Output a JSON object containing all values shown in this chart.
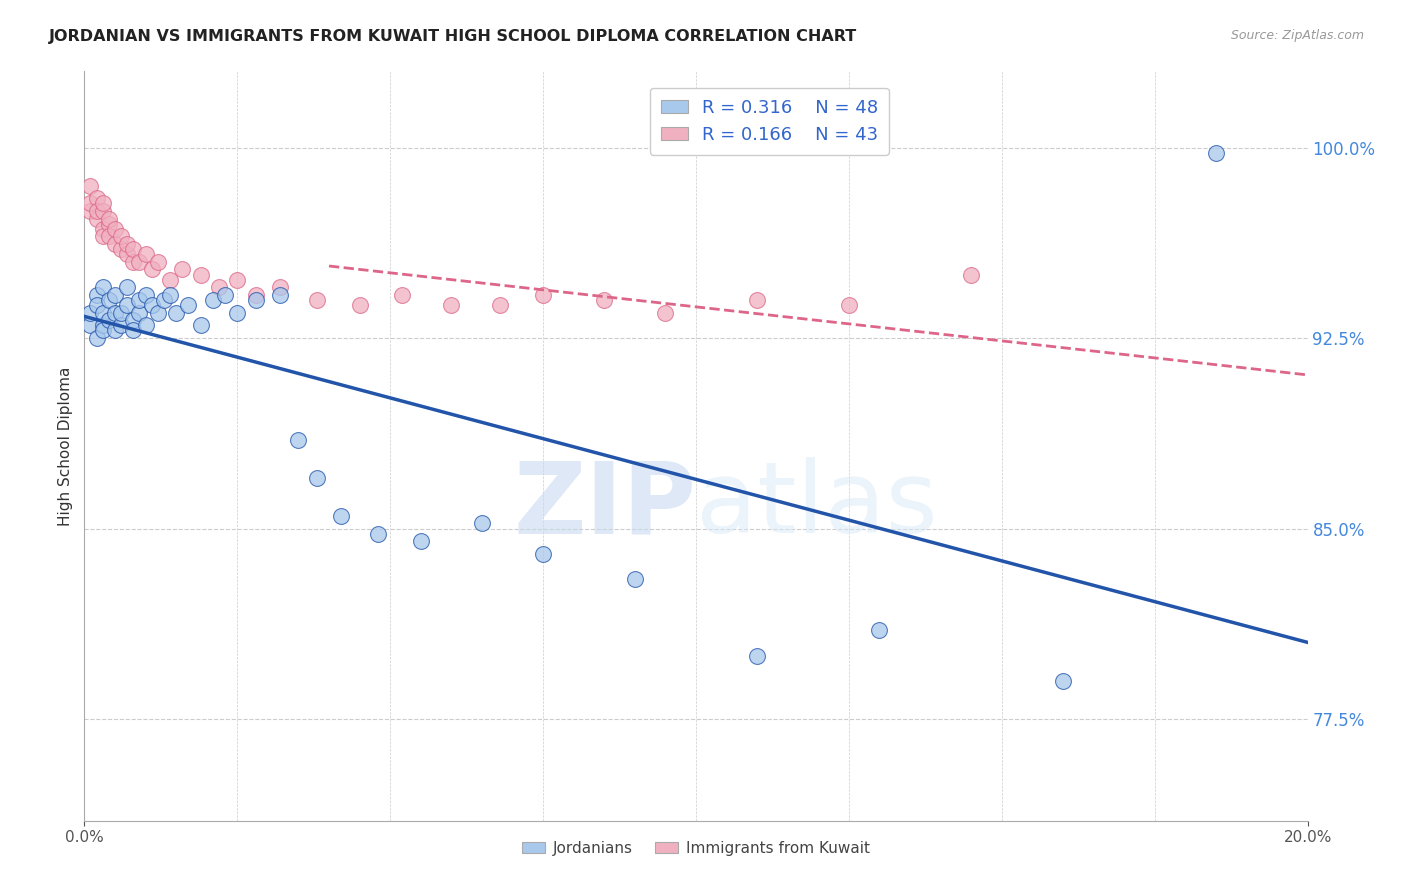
{
  "title": "JORDANIAN VS IMMIGRANTS FROM KUWAIT HIGH SCHOOL DIPLOMA CORRELATION CHART",
  "source": "Source: ZipAtlas.com",
  "ylabel": "High School Diploma",
  "y_tick_labels": [
    "77.5%",
    "85.0%",
    "92.5%",
    "100.0%"
  ],
  "y_tick_values": [
    0.775,
    0.85,
    0.925,
    1.0
  ],
  "xlim": [
    0.0,
    0.2
  ],
  "ylim": [
    0.735,
    1.03
  ],
  "watermark_zip": "ZIP",
  "watermark_atlas": "atlas",
  "legend_r1": "R = 0.316",
  "legend_n1": "N = 48",
  "legend_r2": "R = 0.166",
  "legend_n2": "N = 43",
  "color_blue": "#a8c8ec",
  "color_pink": "#f0b0c0",
  "line_blue": "#2255aa",
  "line_pink": "#dd6688",
  "jordanians_x": [
    0.001,
    0.001,
    0.002,
    0.002,
    0.002,
    0.003,
    0.003,
    0.003,
    0.003,
    0.004,
    0.004,
    0.005,
    0.005,
    0.005,
    0.006,
    0.006,
    0.007,
    0.007,
    0.008,
    0.008,
    0.009,
    0.009,
    0.01,
    0.01,
    0.011,
    0.012,
    0.013,
    0.014,
    0.015,
    0.017,
    0.019,
    0.021,
    0.023,
    0.025,
    0.028,
    0.032,
    0.035,
    0.038,
    0.042,
    0.048,
    0.055,
    0.065,
    0.075,
    0.09,
    0.11,
    0.13,
    0.16,
    0.185
  ],
  "jordanians_y": [
    0.93,
    0.935,
    0.942,
    0.925,
    0.938,
    0.93,
    0.945,
    0.935,
    0.928,
    0.94,
    0.932,
    0.935,
    0.928,
    0.942,
    0.93,
    0.935,
    0.945,
    0.938,
    0.932,
    0.928,
    0.935,
    0.94,
    0.93,
    0.942,
    0.938,
    0.935,
    0.94,
    0.942,
    0.935,
    0.938,
    0.93,
    0.94,
    0.942,
    0.935,
    0.94,
    0.942,
    0.885,
    0.87,
    0.855,
    0.848,
    0.845,
    0.852,
    0.84,
    0.83,
    0.8,
    0.81,
    0.79,
    0.998
  ],
  "kuwait_x": [
    0.001,
    0.001,
    0.001,
    0.002,
    0.002,
    0.002,
    0.003,
    0.003,
    0.003,
    0.003,
    0.004,
    0.004,
    0.004,
    0.005,
    0.005,
    0.006,
    0.006,
    0.007,
    0.007,
    0.008,
    0.008,
    0.009,
    0.01,
    0.011,
    0.012,
    0.014,
    0.016,
    0.019,
    0.022,
    0.025,
    0.028,
    0.032,
    0.038,
    0.045,
    0.052,
    0.06,
    0.068,
    0.075,
    0.085,
    0.095,
    0.11,
    0.125,
    0.145
  ],
  "kuwait_y": [
    0.975,
    0.985,
    0.978,
    0.98,
    0.972,
    0.975,
    0.968,
    0.975,
    0.965,
    0.978,
    0.97,
    0.965,
    0.972,
    0.962,
    0.968,
    0.96,
    0.965,
    0.958,
    0.962,
    0.955,
    0.96,
    0.955,
    0.958,
    0.952,
    0.955,
    0.948,
    0.952,
    0.95,
    0.945,
    0.948,
    0.942,
    0.945,
    0.94,
    0.938,
    0.942,
    0.938,
    0.938,
    0.942,
    0.94,
    0.935,
    0.94,
    0.938,
    0.95
  ]
}
